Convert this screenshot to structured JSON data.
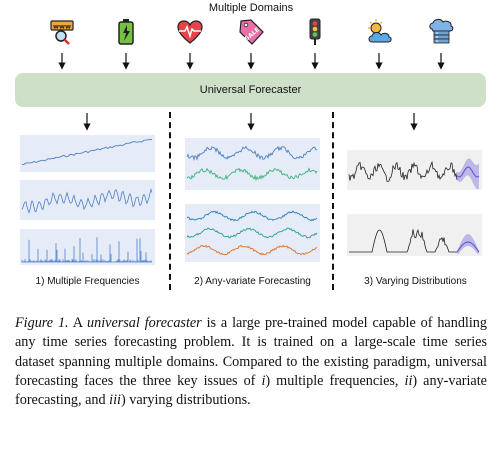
{
  "header": {
    "title": "Multiple Domains"
  },
  "domain_icons": [
    {
      "name": "web-search-icon",
      "label": "www"
    },
    {
      "name": "battery-icon",
      "label": ""
    },
    {
      "name": "heartbeat-icon",
      "label": ""
    },
    {
      "name": "sale-tag-icon",
      "label": "SALE"
    },
    {
      "name": "traffic-light-icon",
      "label": ""
    },
    {
      "name": "weather-icon",
      "label": ""
    },
    {
      "name": "cloud-server-icon",
      "label": ""
    }
  ],
  "model": {
    "label": "Universal Forecaster"
  },
  "sections": [
    {
      "label": "1) Multiple Frequencies"
    },
    {
      "label": "2) Any-variate Forecasting"
    },
    {
      "label": "3) Varying Distributions"
    }
  ],
  "colors": {
    "model_box": "#cfe0c9",
    "panel_blue": "#e6ecf7",
    "panel_gray": "#f0f0f0",
    "series_blue": "#4f7ec8",
    "series_teal": "#2a9d8f",
    "series_green": "#3fb27f",
    "series_orange": "#e0702a",
    "series_black": "#222222",
    "forecast_purple": "#5b4fd6"
  },
  "caption": {
    "figure_label": "Figure 1.",
    "part1": " A ",
    "term": "universal forecaster",
    "part2": " is a large pre-trained model capable of handling any time series forecasting problem. It is trained on a large-scale time series dataset spanning multiple domains. Compared to the existing paradigm, universal forecasting faces the three key issues of ",
    "i1": "i",
    "part3": ") multiple frequencies, ",
    "i2": "ii",
    "part4": ") any-variate forecasting, and ",
    "i3": "iii",
    "part5": ") varying distributions."
  }
}
